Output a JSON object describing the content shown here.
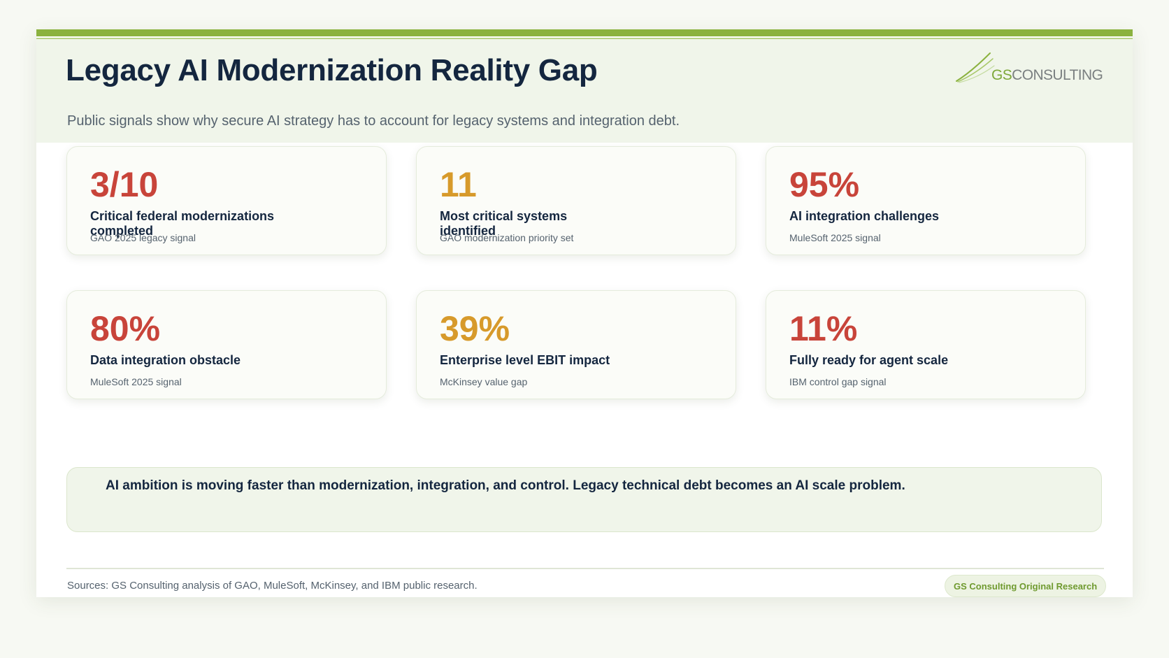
{
  "header": {
    "title": "Legacy AI Modernization Reality Gap",
    "subtitle": "Public signals show why secure AI strategy has to account for legacy systems and integration debt."
  },
  "logo": {
    "gs": "GS",
    "consulting": "CONSULTING"
  },
  "cards": [
    {
      "value": "3/10",
      "label": "Critical federal modernizations completed",
      "source": "GAO 2025 legacy signal",
      "color": "#c8443a"
    },
    {
      "value": "11",
      "label": "Most critical systems identified",
      "source": "GAO modernization priority set",
      "color": "#d79a2b"
    },
    {
      "value": "95%",
      "label": "AI integration challenges",
      "source": "MuleSoft 2025 signal",
      "color": "#c8443a"
    },
    {
      "value": "80%",
      "label": "Data integration obstacle",
      "source": "MuleSoft 2025 signal",
      "color": "#c8443a"
    },
    {
      "value": "39%",
      "label": "Enterprise level EBIT impact",
      "source": "McKinsey value gap",
      "color": "#d79a2b"
    },
    {
      "value": "11%",
      "label": "Fully ready for agent scale",
      "source": "IBM control gap signal",
      "color": "#c8443a"
    }
  ],
  "callout": "AI ambition is moving faster than modernization, integration, and control. Legacy technical debt becomes an AI scale problem.",
  "footer": {
    "sources": "Sources: GS Consulting analysis of GAO, MuleSoft, McKinsey, and IBM public research.",
    "badge": "GS Consulting Original Research"
  },
  "colors": {
    "accent_green": "#8bb23f",
    "red": "#c8443a",
    "amber": "#d79a2b",
    "navy": "#14263f"
  }
}
